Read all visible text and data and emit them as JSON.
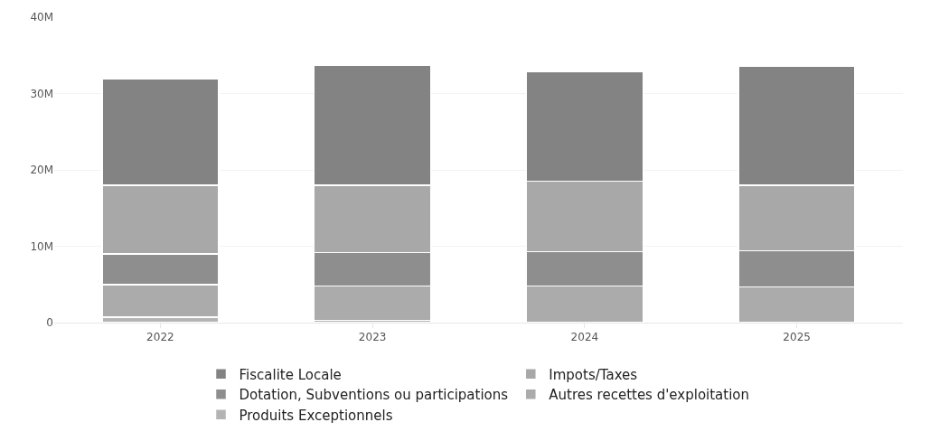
{
  "chart_data": {
    "type": "bar",
    "stacked": true,
    "categories": [
      "2022",
      "2023",
      "2024",
      "2025"
    ],
    "series": [
      {
        "name": "Produits Exceptionnels",
        "color": "#b4b4b4",
        "values": [
          0.7,
          0.3,
          0,
          0
        ]
      },
      {
        "name": "Autres recettes d'exploitation",
        "color": "#ababab",
        "values": [
          4.3,
          4.5,
          4.8,
          4.7
        ]
      },
      {
        "name": "Dotation, Subventions ou participations",
        "color": "#8e8e8e",
        "values": [
          4.0,
          4.4,
          4.5,
          4.7
        ]
      },
      {
        "name": "Impots/Taxes",
        "color": "#a8a8a8",
        "values": [
          9.0,
          8.8,
          9.2,
          8.6
        ]
      },
      {
        "name": "Fiscalite Locale",
        "color": "#838383",
        "values": [
          13.9,
          15.7,
          14.4,
          15.6
        ]
      }
    ],
    "ylim": [
      0,
      40
    ],
    "yticks": [
      {
        "value": 0,
        "label": "0"
      },
      {
        "value": 10,
        "label": "10M"
      },
      {
        "value": 20,
        "label": "20M"
      },
      {
        "value": 30,
        "label": "30M"
      },
      {
        "value": 40,
        "label": "40M"
      }
    ],
    "grid": "y",
    "legend": "bottom"
  }
}
